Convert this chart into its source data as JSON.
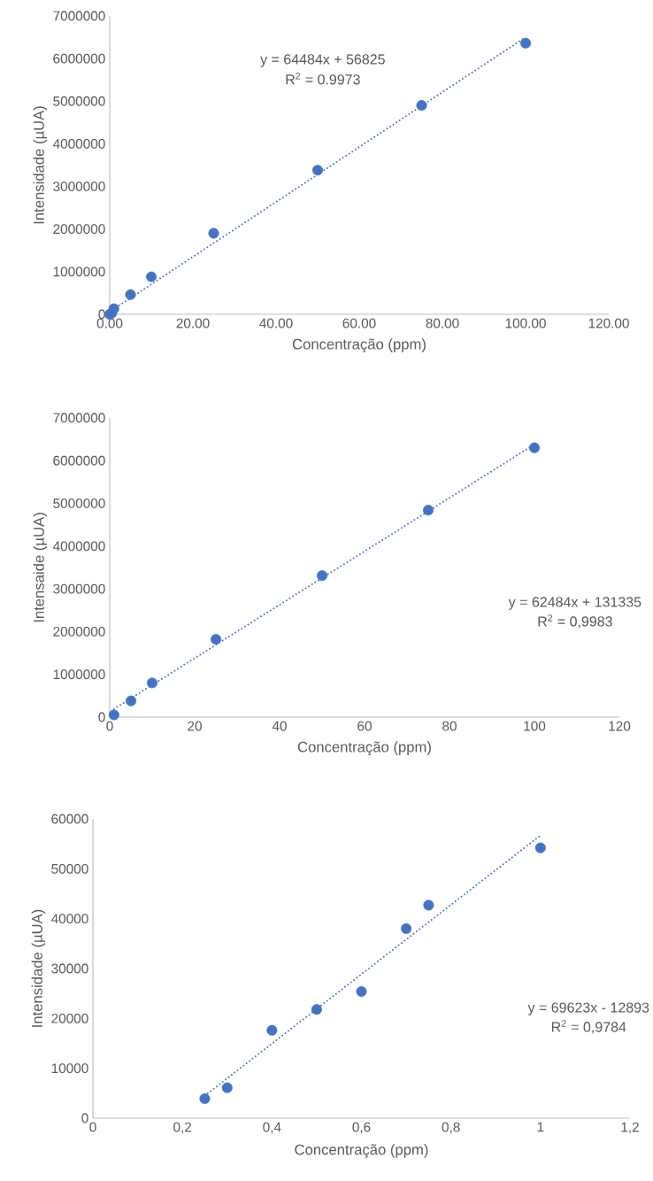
{
  "chart_data": [
    {
      "type": "scatter",
      "xlabel": "Concentração (ppm)",
      "ylabel": "Intensidade (µUA)",
      "marker": "circle",
      "grid": false,
      "xlim": [
        0,
        120
      ],
      "xticks": [
        {
          "value": 0,
          "label": "0.00"
        },
        {
          "value": 20,
          "label": "20.00"
        },
        {
          "value": 40,
          "label": "40.00"
        },
        {
          "value": 60,
          "label": "60.00"
        },
        {
          "value": 80,
          "label": "80.00"
        },
        {
          "value": 100,
          "label": "100.00"
        },
        {
          "value": 120,
          "label": "120.00"
        }
      ],
      "ylim": [
        0,
        7000000
      ],
      "yticks": [
        0,
        1000000,
        2000000,
        3000000,
        4000000,
        5000000,
        6000000,
        7000000
      ],
      "series": [
        {
          "color": "#4472c4",
          "x": [
            0,
            0.5,
            1,
            5,
            10,
            25,
            50,
            75,
            100
          ],
          "values": [
            0,
            30000,
            130000,
            460000,
            880000,
            1900000,
            3380000,
            4900000,
            6360000
          ]
        },
        {
          "type": "line",
          "color": "#4472c4",
          "line_style": "dotted",
          "marker": "none",
          "x": [
            0,
            100
          ],
          "values": [
            60000,
            6500000
          ]
        }
      ],
      "annotations": [
        "y = 64484x + 56825",
        "R$^{2}$ = 0.9973"
      ]
    },
    {
      "type": "scatter",
      "xlabel": "Concentração (ppm)",
      "ylabel": "Intensaide (µUA)",
      "marker": "circle",
      "grid": false,
      "xlim": [
        0,
        120
      ],
      "xticks": [
        0,
        20,
        40,
        60,
        80,
        100,
        120
      ],
      "ylim": [
        0,
        7000000
      ],
      "yticks": [
        0,
        1000000,
        2000000,
        3000000,
        4000000,
        5000000,
        6000000,
        7000000
      ],
      "series": [
        {
          "color": "#4472c4",
          "x": [
            1,
            5,
            10,
            25,
            50,
            75,
            100
          ],
          "values": [
            50000,
            380000,
            800000,
            1820000,
            3310000,
            4840000,
            6300000
          ]
        },
        {
          "type": "line",
          "color": "#4472c4",
          "line_style": "dotted",
          "marker": "none",
          "x": [
            1,
            100
          ],
          "values": [
            190000,
            6380000
          ]
        }
      ],
      "annotations": [
        "y = 62484x + 131335",
        "R$^{2}$ = 0,9983"
      ]
    },
    {
      "type": "scatter",
      "xlabel": "Concentração (ppm)",
      "ylabel": "Intensidade (µUA)",
      "marker": "circle",
      "grid": false,
      "xlim": [
        0,
        1.2
      ],
      "xticks": [
        0,
        {
          "value": 0.2,
          "label": "0,2"
        },
        {
          "value": 0.4,
          "label": "0,4"
        },
        {
          "value": 0.6,
          "label": "0,6"
        },
        {
          "value": 0.8,
          "label": "0,8"
        },
        1,
        {
          "value": 1.2,
          "label": "1,2"
        }
      ],
      "ylim": [
        0,
        60000
      ],
      "yticks": [
        0,
        10000,
        20000,
        30000,
        40000,
        50000,
        60000
      ],
      "series": [
        {
          "color": "#4472c4",
          "x": [
            0.25,
            0.3,
            0.4,
            0.5,
            0.6,
            0.7,
            0.75,
            1
          ],
          "values": [
            3900,
            6100,
            17600,
            21800,
            25400,
            38000,
            42700,
            54200
          ]
        },
        {
          "type": "line",
          "color": "#4472c4",
          "line_style": "dotted",
          "marker": "none",
          "x": [
            0.25,
            1
          ],
          "values": [
            4500,
            56700
          ]
        }
      ],
      "annotations": [
        "y = 69623x - 12893",
        "R$^{2}$ = 0,9784"
      ]
    }
  ]
}
